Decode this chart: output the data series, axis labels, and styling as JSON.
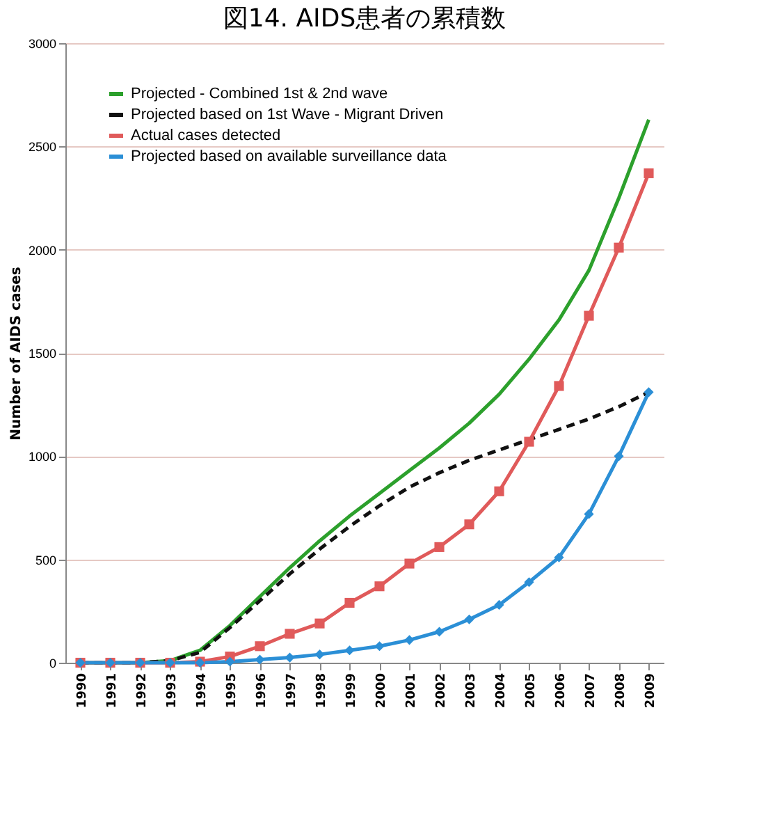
{
  "chart_data": {
    "type": "line",
    "title": "図14. AIDS患者の累積数",
    "ylabel": "Number of AIDS cases",
    "categories": [
      "1990",
      "1991",
      "1992",
      "1993",
      "1994",
      "1995",
      "1996",
      "1997",
      "1998",
      "1999",
      "2000",
      "2001",
      "2002",
      "2003",
      "2004",
      "2005",
      "2006",
      "2007",
      "2008",
      "2009"
    ],
    "series": [
      {
        "name": "Projected - Combined 1st & 2nd wave",
        "color": "#2ca02c",
        "marker": "none",
        "line_style": "solid",
        "values": [
          0,
          0,
          0,
          10,
          60,
          180,
          320,
          460,
          590,
          710,
          820,
          930,
          1040,
          1160,
          1300,
          1470,
          1660,
          1900,
          2250,
          2630
        ]
      },
      {
        "name": "Projected based on 1st Wave - Migrant Driven",
        "color": "#111111",
        "marker": "none",
        "line_style": "dashed",
        "values": [
          0,
          0,
          0,
          10,
          50,
          170,
          300,
          430,
          550,
          660,
          760,
          850,
          920,
          980,
          1030,
          1080,
          1130,
          1180,
          1240,
          1310
        ]
      },
      {
        "name": "Actual cases detected",
        "color": "#e05a5a",
        "marker": "square",
        "line_style": "solid",
        "values": [
          0,
          0,
          0,
          0,
          5,
          30,
          80,
          140,
          190,
          290,
          370,
          480,
          560,
          670,
          830,
          1070,
          1340,
          1680,
          2010,
          2370
        ]
      },
      {
        "name": "Projected based on available surveillance data",
        "color": "#2b8fd6",
        "marker": "diamond",
        "line_style": "solid",
        "values": [
          0,
          0,
          0,
          0,
          0,
          5,
          15,
          25,
          40,
          60,
          80,
          110,
          150,
          210,
          280,
          390,
          510,
          720,
          1000,
          1310
        ]
      }
    ],
    "ylim": [
      0,
      3000
    ],
    "yticks": [
      0,
      500,
      1000,
      1500,
      2000,
      2500,
      3000
    ],
    "grid": "y",
    "legend": "top left"
  }
}
